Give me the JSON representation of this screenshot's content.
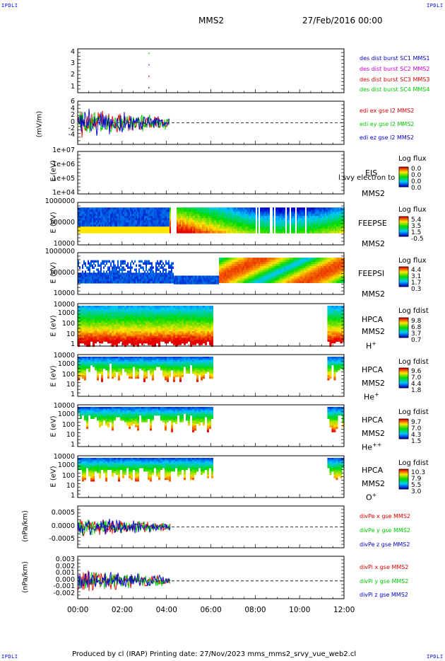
{
  "header": {
    "spacecraft": "MMS2",
    "date": "27/Feb/2016 00:00",
    "corner_tl": "IPDLI",
    "corner_tr": "IPDLI",
    "corner_bl": "IPDLI",
    "corner_br": "IPDLI"
  },
  "footer": {
    "text": "Produced by cl (IRAP)   Printing date: 27/Nov/2023   mms_mms2_srvy_vue_web2.cl"
  },
  "x_axis": {
    "ticks": [
      "00:00",
      "02:00",
      "04:00",
      "06:00",
      "08:00",
      "10:00",
      "12:00"
    ]
  },
  "colors": {
    "blue": "#0000cc",
    "red": "#dd0000",
    "green": "#00cc00",
    "magenta": "#cc00cc"
  },
  "panels": {
    "dist": {
      "yticks": [
        "4",
        "3",
        "2",
        "1"
      ],
      "legend": [
        {
          "text": "des dist burst SC1 MMS1",
          "color": "#0000cc"
        },
        {
          "text": "des dist burst SC2 MMS2",
          "color": "#cc00cc"
        },
        {
          "text": "des dist burst SC3 MMS3",
          "color": "#dd0000"
        },
        {
          "text": "des dist burst SC4 MMS4",
          "color": "#00cc00"
        }
      ]
    },
    "edi": {
      "ylabel": "(mV/m)",
      "yticks": [
        "6",
        "4",
        "2",
        "0",
        "-2",
        "-4"
      ],
      "legend": [
        {
          "text": "edi ex gse l2 MMS2",
          "color": "#dd0000"
        },
        {
          "text": "edi ey gse l2 MMS2",
          "color": "#00cc00"
        },
        {
          "text": "edi ez gse l2 MMS2",
          "color": "#0000cc"
        }
      ]
    },
    "eis": {
      "ylabel": "E (eV)",
      "yticks": [
        "1e+07",
        "1e+06",
        "1e+05",
        "1e+04"
      ],
      "inst": "EIS",
      "inst2": "MMS2",
      "overlay": "l  svy electron to",
      "cb_title": "Log flux",
      "cb_ticks": [
        "0.0",
        "0.0",
        "0.0",
        "0.0"
      ]
    },
    "feeps_e": {
      "ylabel": "E (eV)",
      "yticks": [
        "1000000",
        "100000",
        "10000"
      ],
      "inst": "FEEPSE",
      "inst2": "MMS2",
      "cb_title": "Log flux",
      "cb_ticks": [
        "5.4",
        "3.5",
        "1.5",
        "-0.5"
      ]
    },
    "feeps_i": {
      "ylabel": "E (eV)",
      "yticks": [
        "1000000",
        "100000",
        "10000"
      ],
      "inst": "FEEPSI",
      "inst2": "MMS2",
      "cb_title": "Log flux",
      "cb_ticks": [
        "4.4",
        "3.1",
        "1.7",
        "0.3"
      ]
    },
    "hpca_h": {
      "ylabel": "E (eV)",
      "yticks": [
        "10000",
        "1000",
        "100",
        "10",
        "1"
      ],
      "inst": "HPCA",
      "inst2": "MMS2",
      "species": "H",
      "species_sup": "+",
      "cb_title": "Log fdist",
      "cb_ticks": [
        "9.8",
        "6.8",
        "3.7",
        "0.7"
      ]
    },
    "hpca_he": {
      "ylabel": "E (eV)",
      "yticks": [
        "10000",
        "1000",
        "100",
        "10",
        "1"
      ],
      "inst": "HPCA",
      "inst2": "MMS2",
      "species": "He",
      "species_sup": "+",
      "cb_title": "Log fdist",
      "cb_ticks": [
        "9.6",
        "7.0",
        "4.4",
        "1.8"
      ]
    },
    "hpca_hepp": {
      "ylabel": "E (eV)",
      "yticks": [
        "10000",
        "1000",
        "100",
        "10",
        "1"
      ],
      "inst": "HPCA",
      "inst2": "MMS2",
      "species": "He",
      "species_sup": "++",
      "cb_title": "Log fdist",
      "cb_ticks": [
        "9.7",
        "7.0",
        "4.3",
        "1.5"
      ]
    },
    "hpca_o": {
      "ylabel": "E (eV)",
      "yticks": [
        "10000",
        "1000",
        "100",
        "10",
        "1"
      ],
      "inst": "HPCA",
      "inst2": "MMS2",
      "species": "O",
      "species_sup": "+",
      "cb_title": "Log fdist",
      "cb_ticks": [
        "10.3",
        "7.9",
        "5.5",
        "3.0"
      ]
    },
    "divpe": {
      "ylabel": "(nPa/km)",
      "yticks": [
        "0.0005",
        "0.0000",
        "-0.0005"
      ],
      "legend": [
        {
          "text": "divPe x gse MMS2",
          "color": "#dd0000"
        },
        {
          "text": "divPe y gse MMS2",
          "color": "#00cc00"
        },
        {
          "text": "divPe z gse MMS2",
          "color": "#0000cc"
        }
      ]
    },
    "divpi": {
      "ylabel": "(nPa/km)",
      "yticks": [
        "0.003",
        "0.002",
        "0.001",
        "0.000",
        "-0.001",
        "-0.002"
      ],
      "legend": [
        {
          "text": "divPi x gse MMS2",
          "color": "#dd0000"
        },
        {
          "text": "divPi y gse MMS2",
          "color": "#00cc00"
        },
        {
          "text": "divPi z gse MMS2",
          "color": "#0000cc"
        }
      ]
    }
  },
  "chart_data": {
    "type": "line",
    "x_range": [
      "00:00",
      "12:00"
    ],
    "panels": [
      {
        "name": "dist",
        "type": "scatter",
        "ylim": [
          0.5,
          4.5
        ],
        "series": [
          {
            "name": "des dist burst SC1 MMS1",
            "x": [
              "03:12"
            ],
            "y": [
              1
            ]
          },
          {
            "name": "des dist burst SC2 MMS2",
            "x": [
              "03:12"
            ],
            "y": [
              3
            ]
          },
          {
            "name": "des dist burst SC3 MMS3",
            "x": [
              "03:12"
            ],
            "y": [
              2
            ]
          },
          {
            "name": "des dist burst SC4 MMS4",
            "x": [
              "03:12"
            ],
            "y": [
              4
            ]
          }
        ]
      },
      {
        "name": "edi",
        "type": "line",
        "ylim": [
          -5,
          7
        ],
        "data_span": [
          "00:00",
          "04:10"
        ]
      },
      {
        "name": "eis",
        "type": "heatmap",
        "log_y": true,
        "ylim": [
          10000.0,
          10000000.0
        ]
      },
      {
        "name": "feeps_e",
        "type": "heatmap",
        "log_y": true,
        "ylim": [
          10000.0,
          1000000.0
        ]
      },
      {
        "name": "feeps_i",
        "type": "heatmap",
        "log_y": true,
        "ylim": [
          10000.0,
          1000000.0
        ]
      },
      {
        "name": "hpca_h",
        "type": "heatmap",
        "log_y": true,
        "ylim": [
          1,
          10000.0
        ],
        "data_gap": [
          "06:05",
          "11:15"
        ]
      },
      {
        "name": "hpca_he",
        "type": "heatmap",
        "log_y": true,
        "ylim": [
          1,
          10000.0
        ],
        "data_gap": [
          "06:05",
          "11:15"
        ]
      },
      {
        "name": "hpca_hepp",
        "type": "heatmap",
        "log_y": true,
        "ylim": [
          1,
          10000.0
        ],
        "data_gap": [
          "06:05",
          "11:15"
        ]
      },
      {
        "name": "hpca_o",
        "type": "heatmap",
        "log_y": true,
        "ylim": [
          1,
          10000.0
        ],
        "data_gap": [
          "06:05",
          "11:15"
        ]
      },
      {
        "name": "divpe",
        "type": "line",
        "ylim": [
          -0.0009,
          0.0007
        ],
        "data_span": [
          "00:00",
          "04:15"
        ]
      },
      {
        "name": "divpi",
        "type": "line",
        "ylim": [
          -0.0025,
          0.0032
        ],
        "data_span": [
          "00:00",
          "04:15"
        ]
      }
    ]
  }
}
